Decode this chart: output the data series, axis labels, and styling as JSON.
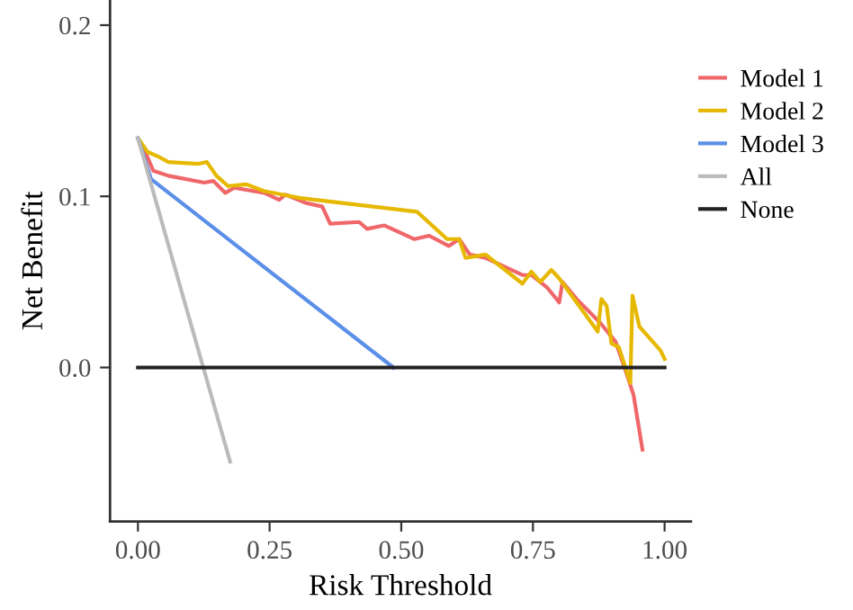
{
  "chart_data": {
    "type": "line",
    "xlabel": "Risk Threshold",
    "ylabel": "Net Benefit",
    "xlim": [
      -0.053,
      1.05
    ],
    "ylim": [
      -0.09,
      0.2147
    ],
    "xticks": [
      {
        "value": 0,
        "label": "0.00"
      },
      0.25,
      {
        "value": 0.5,
        "label": "0.50"
      },
      0.75,
      {
        "value": 1,
        "label": "1.00"
      }
    ],
    "yticks": [
      {
        "value": 0,
        "label": "0.0"
      },
      0.1,
      0.2
    ],
    "legend": "right",
    "grid": false,
    "marker": "none",
    "line_style": "solid",
    "series": [
      {
        "name": "Model 1",
        "color": "#f0676a",
        "x": [
          0,
          0.018,
          0.029,
          0.058,
          0.126,
          0.143,
          0.166,
          0.183,
          0.24,
          0.268,
          0.28,
          0.32,
          0.35,
          0.365,
          0.42,
          0.435,
          0.468,
          0.525,
          0.553,
          0.59,
          0.61,
          0.63,
          0.66,
          0.73,
          0.747,
          0.776,
          0.8,
          0.806,
          0.833,
          0.878,
          0.907,
          0.924,
          0.941,
          0.958
        ],
        "values": [
          0.134,
          0.123,
          0.115,
          0.112,
          0.108,
          0.109,
          0.102,
          0.105,
          0.102,
          0.098,
          0.101,
          0.096,
          0.094,
          0.084,
          0.085,
          0.081,
          0.083,
          0.075,
          0.077,
          0.071,
          0.075,
          0.066,
          0.064,
          0.054,
          0.054,
          0.047,
          0.038,
          0.05,
          0.04,
          0.026,
          0.015,
          0,
          -0.016,
          -0.048
        ]
      },
      {
        "name": "Model 2",
        "color": "#e6b800",
        "x": [
          0,
          0.018,
          0.04,
          0.058,
          0.115,
          0.131,
          0.149,
          0.171,
          0.206,
          0.24,
          0.274,
          0.308,
          0.53,
          0.587,
          0.61,
          0.622,
          0.66,
          0.73,
          0.747,
          0.764,
          0.785,
          0.8,
          0.873,
          0.88,
          0.89,
          0.899,
          0.913,
          0.935,
          0.939,
          0.952,
          0.992,
          1.0
        ],
        "values": [
          0.134,
          0.126,
          0.123,
          0.12,
          0.119,
          0.12,
          0.112,
          0.106,
          0.107,
          0.103,
          0.101,
          0.099,
          0.091,
          0.075,
          0.075,
          0.064,
          0.066,
          0.049,
          0.056,
          0.05,
          0.057,
          0.052,
          0.021,
          0.04,
          0.036,
          0.014,
          0.012,
          -0.009,
          0.042,
          0.024,
          0.01,
          0.005
        ]
      },
      {
        "name": "Model 3",
        "color": "#5b8fe8",
        "x": [
          0,
          0.025,
          0.485
        ],
        "values": [
          0.134,
          0.11,
          0
        ]
      },
      {
        "name": "All",
        "color": "#bbbbbb",
        "x": [
          0,
          0.175
        ],
        "values": [
          0.134,
          -0.055
        ]
      },
      {
        "name": "None",
        "color": "#222222",
        "x": [
          0,
          1
        ],
        "values": [
          0,
          0
        ]
      }
    ]
  }
}
